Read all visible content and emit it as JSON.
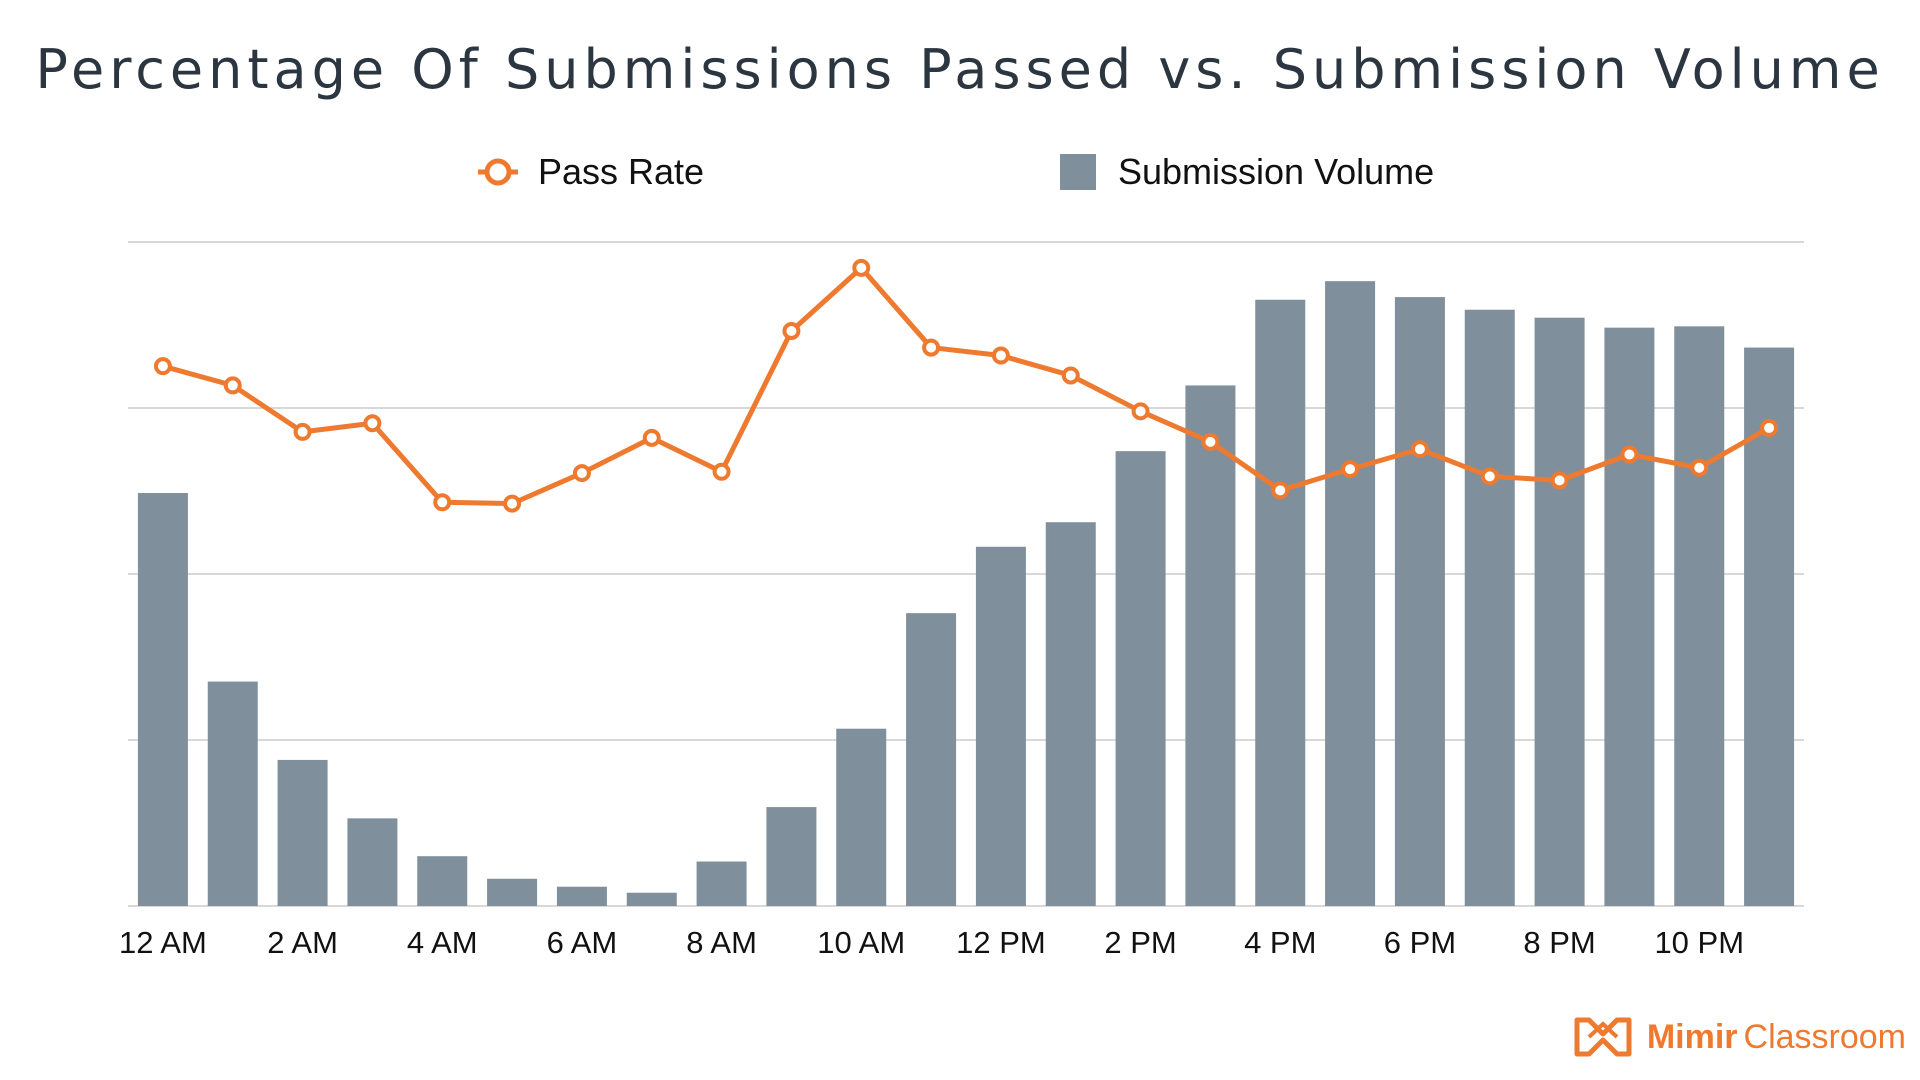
{
  "colors": {
    "line": "#ee7a30",
    "bar": "#7f8f9b",
    "grid": "#cccccc",
    "text": "#111111"
  },
  "chart_data": {
    "type": "bar",
    "title": "Percentage Of Submissions Passed vs. Submission Volume",
    "xlabel": "",
    "ylabel": "",
    "legend_placement": "top",
    "grid": true,
    "categories": [
      "12 AM",
      "1 AM",
      "2 AM",
      "3 AM",
      "4 AM",
      "5 AM",
      "6 AM",
      "7 AM",
      "8 AM",
      "9 AM",
      "10 AM",
      "11 AM",
      "12 PM",
      "1 PM",
      "2 PM",
      "3 PM",
      "4 PM",
      "5 PM",
      "6 PM",
      "7 PM",
      "8 PM",
      "9 PM",
      "10 PM",
      "11 PM"
    ],
    "tick_labels": [
      "12 AM",
      "2 AM",
      "4 AM",
      "6 AM",
      "8 AM",
      "10 AM",
      "12 PM",
      "2 PM",
      "4 PM",
      "6 PM",
      "8 PM",
      "10 PM"
    ],
    "ylim": [
      0,
      100
    ],
    "series": [
      {
        "name": "Submission Volume",
        "type": "bar",
        "values": [
          62.2,
          33.8,
          22.0,
          13.2,
          7.5,
          4.1,
          2.9,
          2.0,
          6.7,
          14.9,
          26.7,
          44.1,
          54.1,
          57.8,
          68.5,
          78.4,
          91.3,
          94.1,
          91.7,
          89.8,
          88.6,
          87.1,
          87.3,
          84.1
        ]
      },
      {
        "name": "Pass Rate",
        "type": "line",
        "values": [
          81.3,
          78.4,
          71.4,
          72.7,
          60.8,
          60.6,
          65.2,
          70.5,
          65.4,
          86.6,
          96.1,
          84.1,
          82.9,
          79.9,
          74.5,
          69.9,
          62.6,
          65.8,
          68.8,
          64.7,
          64.1,
          68.0,
          66.0,
          72.0
        ]
      }
    ]
  },
  "logo": {
    "brand_bold": "Mimir",
    "brand_light": "Classroom",
    "icon": "mimir-logo-icon"
  }
}
